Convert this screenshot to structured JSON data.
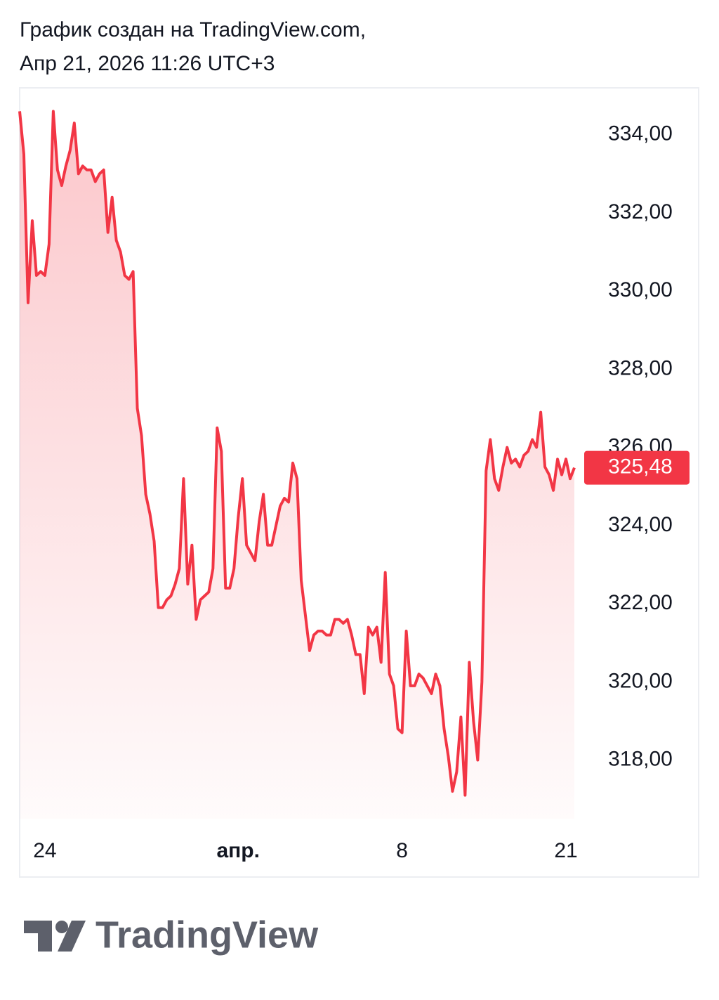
{
  "header": {
    "line1": "График создан на TradingView.com,",
    "line2": "Апр 21, 2026 11:26 UTC+3"
  },
  "chart_data": {
    "type": "line",
    "categories": [
      null,
      null,
      null,
      null,
      null,
      null,
      "24",
      null,
      null,
      null,
      null,
      null,
      null,
      null,
      null,
      null,
      null,
      null,
      null,
      null,
      null,
      null,
      null,
      null,
      null,
      null,
      null,
      null,
      null,
      null,
      null,
      null,
      null,
      null,
      null,
      null,
      null,
      null,
      null,
      null,
      null,
      null,
      null,
      null,
      null,
      null,
      null,
      null,
      null,
      null,
      null,
      null,
      "апр.",
      null,
      null,
      null,
      null,
      null,
      null,
      null,
      null,
      null,
      null,
      null,
      null,
      null,
      null,
      null,
      null,
      null,
      null,
      null,
      null,
      null,
      null,
      null,
      null,
      null,
      null,
      null,
      null,
      null,
      null,
      null,
      null,
      null,
      null,
      null,
      null,
      null,
      null,
      "8",
      null,
      null,
      null,
      null,
      null,
      null,
      null,
      null,
      null,
      null,
      null,
      null,
      null,
      null,
      null,
      null,
      null,
      null,
      null,
      null,
      null,
      null,
      null,
      null,
      null,
      null,
      null,
      null,
      null,
      null,
      null,
      null,
      null,
      null,
      null,
      null,
      null,
      null,
      "21",
      null,
      null
    ],
    "series": [
      {
        "color": "#f23645",
        "values": [
          334.6,
          333.5,
          329.7,
          331.8,
          330.4,
          330.5,
          330.4,
          331.2,
          334.6,
          333.1,
          332.7,
          333.2,
          333.6,
          334.3,
          333.0,
          333.2,
          333.1,
          333.1,
          332.8,
          333.0,
          333.1,
          331.5,
          332.4,
          331.3,
          331.0,
          330.4,
          330.3,
          330.5,
          327.0,
          326.3,
          324.8,
          324.3,
          323.6,
          321.9,
          321.9,
          322.1,
          322.2,
          322.5,
          322.9,
          325.2,
          322.5,
          323.5,
          321.6,
          322.1,
          322.2,
          322.3,
          322.9,
          326.5,
          325.9,
          322.4,
          322.4,
          322.9,
          324.2,
          325.2,
          323.5,
          323.3,
          323.1,
          324.1,
          324.8,
          323.5,
          323.5,
          324.0,
          324.5,
          324.7,
          324.6,
          325.6,
          325.2,
          322.6,
          321.7,
          320.8,
          321.2,
          321.3,
          321.3,
          321.2,
          321.2,
          321.6,
          321.6,
          321.5,
          321.6,
          321.2,
          320.7,
          320.7,
          319.7,
          321.4,
          321.2,
          321.4,
          320.5,
          322.8,
          320.2,
          319.9,
          318.8,
          318.7,
          321.3,
          319.9,
          319.9,
          320.2,
          320.1,
          319.9,
          319.7,
          320.2,
          319.9,
          318.8,
          318.1,
          317.2,
          317.7,
          319.1,
          317.1,
          320.5,
          319.0,
          318.0,
          320.0,
          325.4,
          326.2,
          325.2,
          324.9,
          325.5,
          326.0,
          325.6,
          325.7,
          325.5,
          325.8,
          325.9,
          326.2,
          326.0,
          326.9,
          325.5,
          325.3,
          324.9,
          325.7,
          325.3,
          325.7,
          325.2,
          325.48
        ]
      }
    ],
    "last_value": {
      "value": 325.48,
      "label": "325,48"
    },
    "ylim": [
      316.5,
      335.2
    ],
    "yticks": [
      {
        "value": 318,
        "label": "318,00"
      },
      {
        "value": 320,
        "label": "320,00"
      },
      {
        "value": 322,
        "label": "322,00"
      },
      {
        "value": 324,
        "label": "324,00"
      },
      {
        "value": 326,
        "label": "326,00"
      },
      {
        "value": 328,
        "label": "328,00"
      },
      {
        "value": 330,
        "label": "330,00"
      },
      {
        "value": 332,
        "label": "332,00"
      },
      {
        "value": 334,
        "label": "334,00"
      }
    ],
    "grid": false
  },
  "logo": {
    "text": "TradingView"
  }
}
